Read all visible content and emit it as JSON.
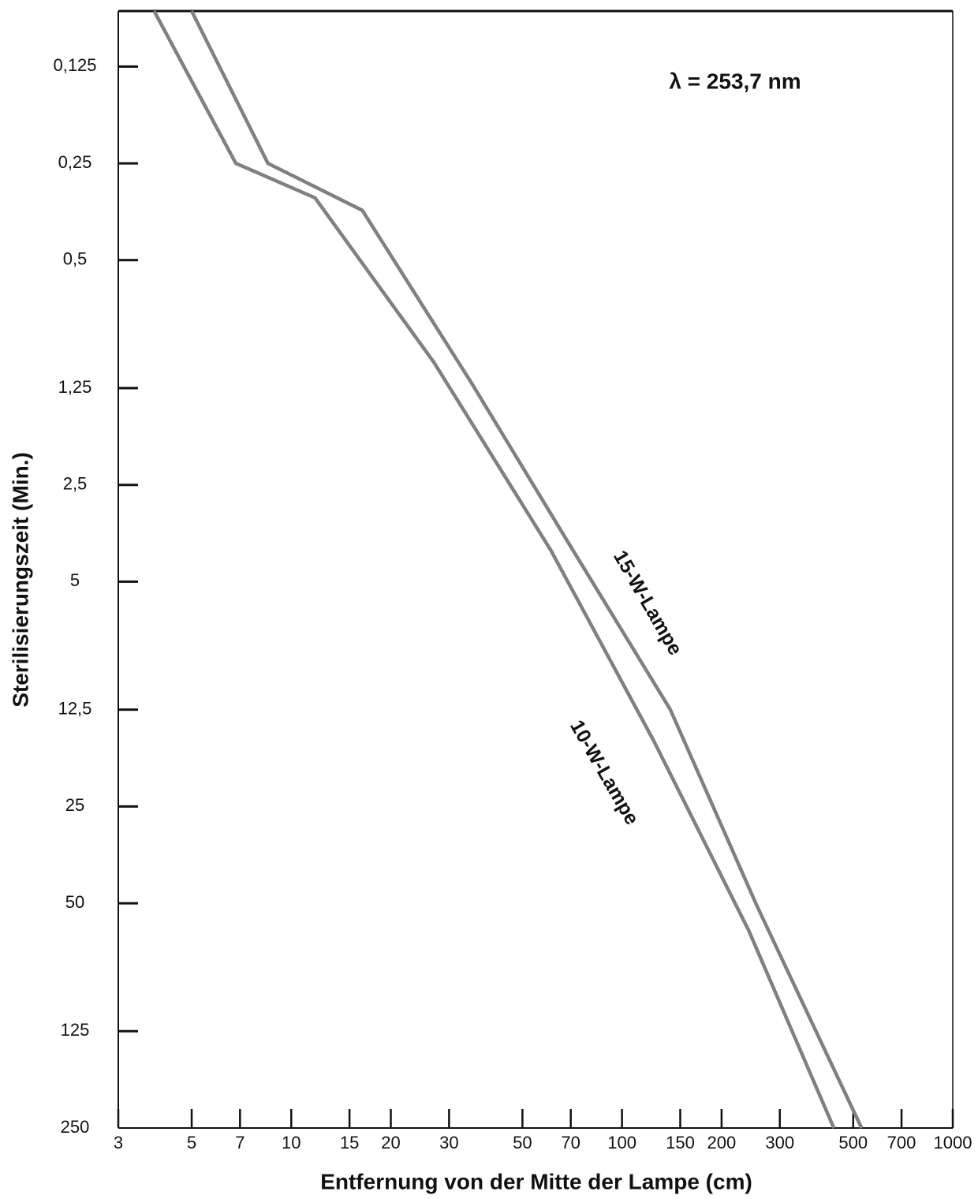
{
  "chart_data": {
    "type": "line",
    "x_label": "Entfernung von der Mitte der Lampe (cm)",
    "y_label": "Sterilisierungszeit (Min.)",
    "annotation": "λ = 253,7 nm",
    "xscale": "log",
    "yscale": "log",
    "y_inverted": true,
    "xlim": [
      3,
      1000
    ],
    "xticks": [
      3,
      5,
      7,
      10,
      15,
      20,
      30,
      50,
      70,
      100,
      150,
      200,
      300,
      500,
      700,
      1000
    ],
    "ylim": [
      0.084,
      250
    ],
    "yticks": [
      {
        "value": 0.125,
        "label": "0,125"
      },
      {
        "value": 0.25,
        "label": "0,25"
      },
      {
        "value": 0.5,
        "label": "0,5"
      },
      {
        "value": 1.25,
        "label": "1,25"
      },
      {
        "value": 2.5,
        "label": "2,5"
      },
      5,
      {
        "value": 12.5,
        "label": "12,5"
      },
      25,
      50,
      125,
      250
    ],
    "series": [
      {
        "name": "15-W-Lampe",
        "color": "#808080",
        "x": [
          5,
          8.5,
          16.4,
          35,
          69,
          140,
          256,
          530
        ],
        "values": [
          0.084,
          0.25,
          0.35,
          1.2,
          3.8,
          12.5,
          51,
          250
        ]
      },
      {
        "name": "10-W-Lampe",
        "color": "#808080",
        "x": [
          3.85,
          6.8,
          11.8,
          27,
          61,
          125,
          242,
          437
        ],
        "values": [
          0.084,
          0.25,
          0.32,
          1.04,
          4,
          15.7,
          61,
          250
        ]
      }
    ]
  }
}
